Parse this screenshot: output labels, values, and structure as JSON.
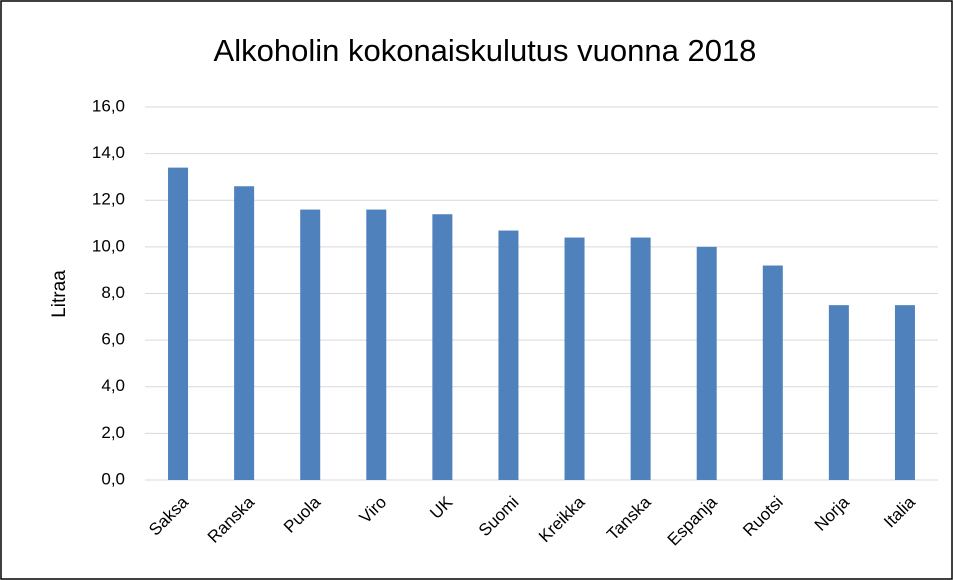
{
  "chart_data": {
    "type": "bar",
    "title": "Alkoholin kokonaiskulutus vuonna 2018",
    "y_label": "Litraa",
    "categories": [
      "Saksa",
      "Ranska",
      "Puola",
      "Viro",
      "UK",
      "Suomi",
      "Kreikka",
      "Tanska",
      "Espanja",
      "Ruotsi",
      "Norja",
      "Italia"
    ],
    "values": [
      13.4,
      12.6,
      11.6,
      11.6,
      11.4,
      10.7,
      10.4,
      10.4,
      10.0,
      9.2,
      7.5,
      7.5
    ],
    "color": "#4f81bd",
    "ylim": [
      0,
      16
    ],
    "yticks": [
      {
        "value": 0,
        "label": "0,0"
      },
      {
        "value": 2,
        "label": "2,0"
      },
      {
        "value": 4,
        "label": "4,0"
      },
      {
        "value": 6,
        "label": "6,0"
      },
      {
        "value": 8,
        "label": "8,0"
      },
      {
        "value": 10,
        "label": "10,0"
      },
      {
        "value": 12,
        "label": "12,0"
      },
      {
        "value": 14,
        "label": "14,0"
      },
      {
        "value": 16,
        "label": "16,0"
      }
    ],
    "grid": true
  }
}
